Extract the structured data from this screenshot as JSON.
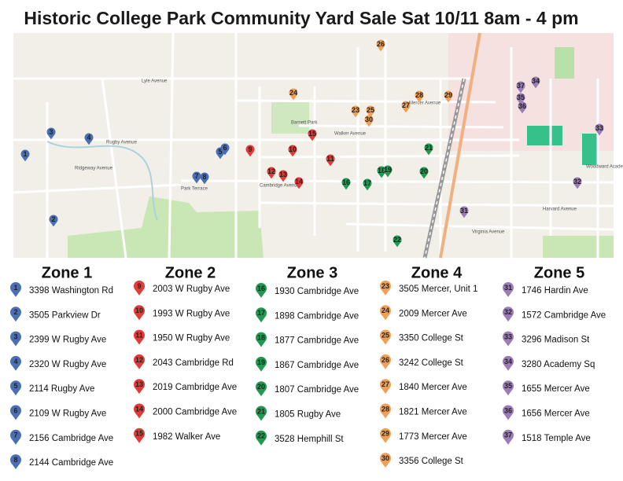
{
  "title": "Historic College Park Community Yard Sale Sat 10/11 8am - 4 pm",
  "map": {
    "labels": [
      "Lyle Avenue",
      "Rugby Avenue",
      "Mercer Avenue",
      "Walker Avenue",
      "Cambridge Avenue",
      "Virginia Avenue",
      "Harvard Avenue",
      "Barnett Park",
      "Woodward Academy",
      "Ridgeway Avenue",
      "Park Terrace"
    ],
    "pins": [
      "1",
      "2",
      "3",
      "4",
      "5",
      "6",
      "7",
      "8",
      "9",
      "10",
      "11",
      "12",
      "13",
      "14",
      "15",
      "16",
      "17",
      "18",
      "19",
      "20",
      "21",
      "22",
      "23",
      "24",
      "25",
      "26",
      "27",
      "28",
      "29",
      "30",
      "31",
      "32",
      "33",
      "34",
      "35",
      "36",
      "37"
    ]
  },
  "zones": [
    {
      "title": "Zone 1",
      "items": [
        {
          "number": "1",
          "address": "3398 Washington Rd"
        },
        {
          "number": "2",
          "address": "3505 Parkview Dr"
        },
        {
          "number": "3",
          "address": "2399 W Rugby Ave"
        },
        {
          "number": "4",
          "address": "2320 W Rugby Ave"
        },
        {
          "number": "5",
          "address": "2114 Rugby Ave"
        },
        {
          "number": "6",
          "address": "2109 W Rugby Ave"
        },
        {
          "number": "7",
          "address": "2156 Cambridge Ave"
        },
        {
          "number": "8",
          "address": "2144 Cambridge Ave"
        }
      ]
    },
    {
      "title": "Zone 2",
      "items": [
        {
          "number": "9",
          "address": "2003 W Rugby Ave"
        },
        {
          "number": "10",
          "address": "1993 W Rugby Ave"
        },
        {
          "number": "11",
          "address": "1950 W Rugby Ave"
        },
        {
          "number": "12",
          "address": "2043 Cambridge Rd"
        },
        {
          "number": "13",
          "address": "2019 Cambridge Ave"
        },
        {
          "number": "14",
          "address": "2000 Cambridge Ave"
        },
        {
          "number": "15",
          "address": "1982 Walker Ave"
        }
      ]
    },
    {
      "title": "Zone 3",
      "items": [
        {
          "number": "16",
          "address": "1930 Cambridge Ave"
        },
        {
          "number": "17",
          "address": "1898 Cambridge Ave"
        },
        {
          "number": "18",
          "address": "1877 Cambridge Ave"
        },
        {
          "number": "19",
          "address": "1867 Cambridge Ave"
        },
        {
          "number": "20",
          "address": "1807 Cambridge Ave"
        },
        {
          "number": "21",
          "address": "1805 Rugby Ave"
        },
        {
          "number": "22",
          "address": "3528 Hemphill St"
        }
      ]
    },
    {
      "title": "Zone 4",
      "items": [
        {
          "number": "23",
          "address": "3505 Mercer, Unit 1"
        },
        {
          "number": "24",
          "address": "2009 Mercer Ave"
        },
        {
          "number": "25",
          "address": "3350 College St"
        },
        {
          "number": "26",
          "address": "3242 College St"
        },
        {
          "number": "27",
          "address": "1840 Mercer Ave"
        },
        {
          "number": "28",
          "address": "1821 Mercer Ave"
        },
        {
          "number": "29",
          "address": "1773 Mercer Ave"
        },
        {
          "number": "30",
          "address": "3356 College St"
        }
      ]
    },
    {
      "title": "Zone 5",
      "items": [
        {
          "number": "31",
          "address": "1746 Hardin Ave"
        },
        {
          "number": "32",
          "address": "1572 Cambridge Ave"
        },
        {
          "number": "33",
          "address": "3296 Madison St"
        },
        {
          "number": "34",
          "address": "3280 Academy Sq"
        },
        {
          "number": "35",
          "address": "1655 Mercer Ave"
        },
        {
          "number": "36",
          "address": "1656 Mercer Ave"
        },
        {
          "number": "37",
          "address": "1518 Temple Ave"
        }
      ]
    }
  ]
}
